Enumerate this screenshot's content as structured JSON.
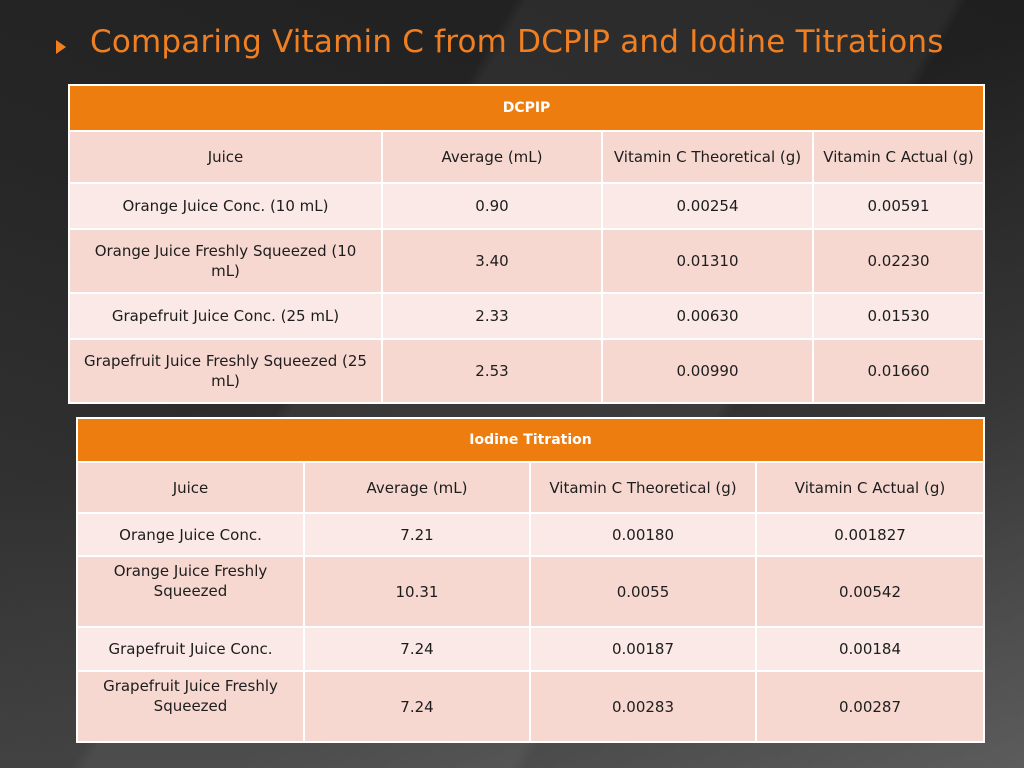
{
  "title": "Comparing Vitamin C from DCPIP and Iodine Titrations",
  "accent_color": "#ee7d10",
  "dcpip": {
    "heading": "DCPIP",
    "columns": [
      "Juice",
      "Average (mL)",
      "Vitamin C Theoretical (g)",
      "Vitamin C Actual (g)"
    ],
    "rows": [
      [
        "Orange Juice Conc. (10 mL)",
        "0.90",
        "0.00254",
        "0.00591"
      ],
      [
        "Orange Juice Freshly Squeezed (10 mL)",
        "3.40",
        "0.01310",
        "0.02230"
      ],
      [
        "Grapefruit Juice Conc. (25 mL)",
        "2.33",
        "0.00630",
        "0.01530"
      ],
      [
        "Grapefruit Juice Freshly Squeezed (25 mL)",
        "2.53",
        "0.00990",
        "0.01660"
      ]
    ]
  },
  "iodine": {
    "heading": "Iodine Titration",
    "columns": [
      "Juice",
      "Average (mL)",
      "Vitamin C Theoretical (g)",
      "Vitamin C Actual (g)"
    ],
    "rows": [
      [
        "Orange Juice Conc.",
        "7.21",
        "0.00180",
        "0.001827"
      ],
      [
        "Orange Juice Freshly Squeezed",
        "10.31",
        "0.0055",
        "0.00542"
      ],
      [
        "Grapefruit Juice Conc.",
        "7.24",
        "0.00187",
        "0.00184"
      ],
      [
        "Grapefruit Juice Freshly Squeezed",
        "7.24",
        "0.00283",
        "0.00287"
      ]
    ]
  }
}
